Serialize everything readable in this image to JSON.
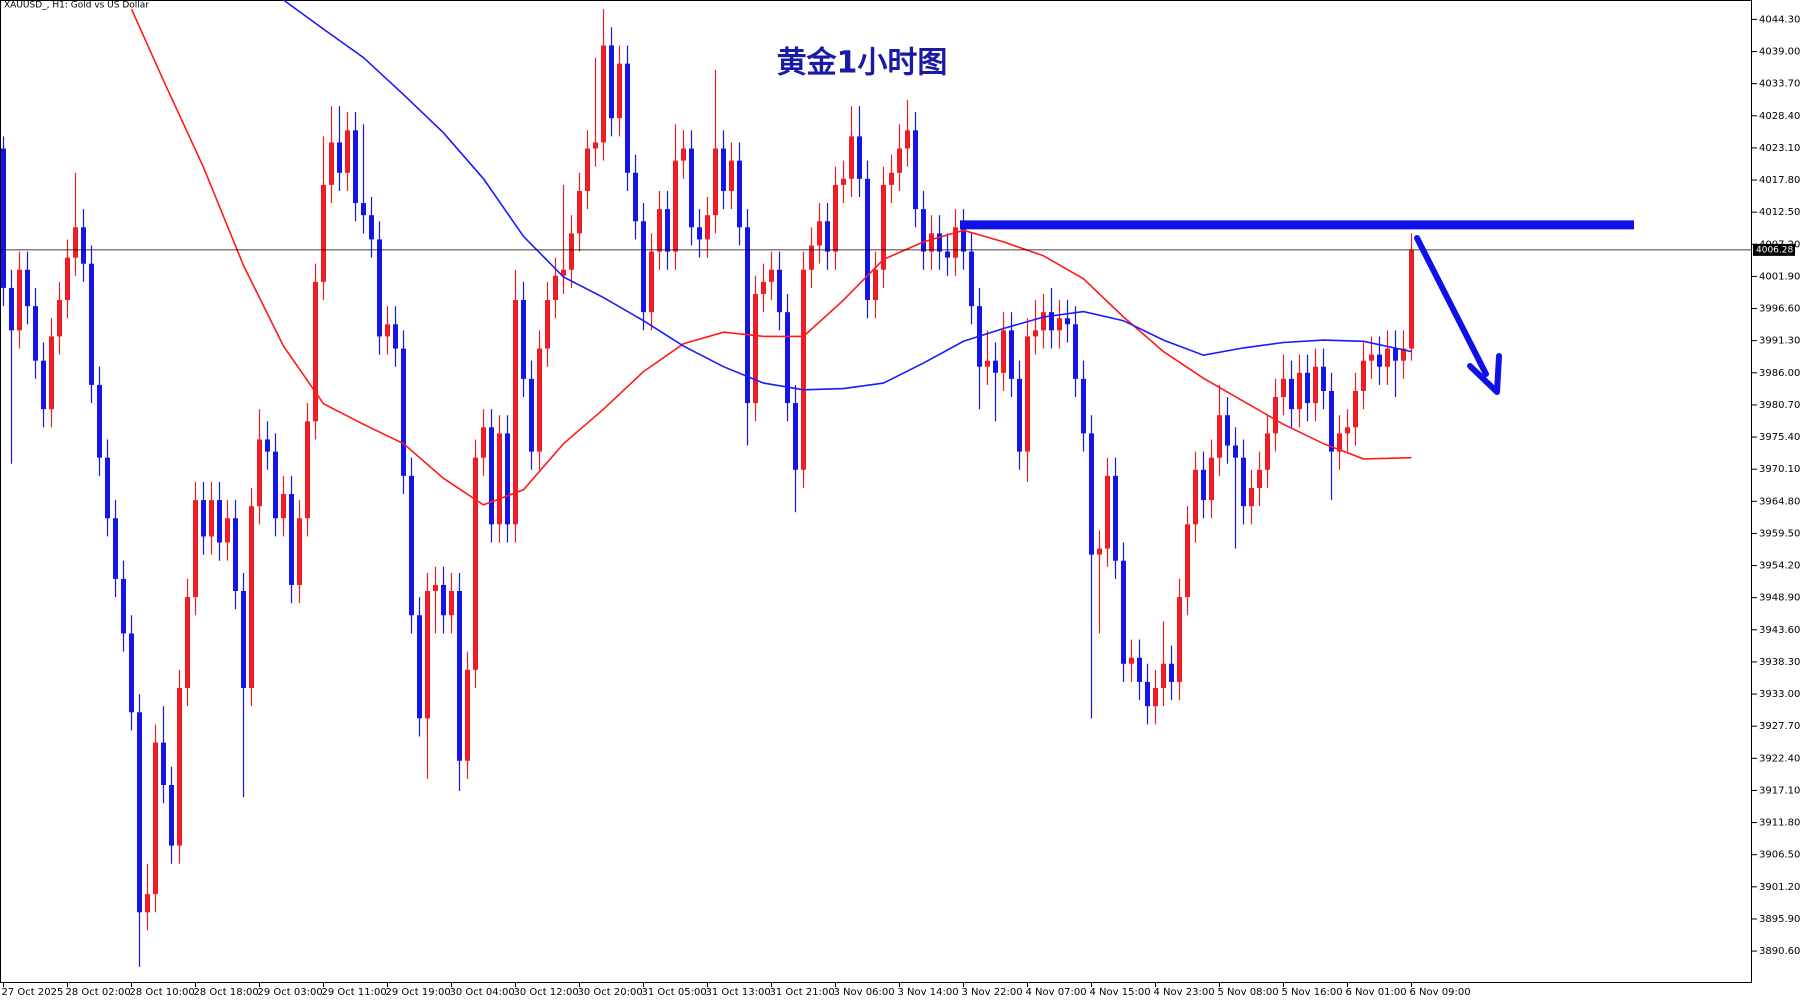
{
  "chart_data": {
    "type": "candlestick",
    "title": "黄金1小时图",
    "symbol_info": "XAUUSD_, H1:  Gold vs US Dollar",
    "up_color": "#ee1c25",
    "down_color": "#1414e6",
    "x_labels": [
      "27 Oct 2025",
      "28 Oct 02:00",
      "28 Oct 10:00",
      "28 Oct 18:00",
      "29 Oct 03:00",
      "29 Oct 11:00",
      "29 Oct 19:00",
      "30 Oct 04:00",
      "30 Oct 12:00",
      "30 Oct 20:00",
      "31 Oct 05:00",
      "31 Oct 13:00",
      "31 Oct 21:00",
      "3 Nov 06:00",
      "3 Nov 14:00",
      "3 Nov 22:00",
      "4 Nov 07:00",
      "4 Nov 15:00",
      "4 Nov 23:00",
      "5 Nov 08:00",
      "5 Nov 16:00",
      "6 Nov 01:00",
      "6 Nov 09:00"
    ],
    "ylim": [
      3885.5,
      4047.5
    ],
    "yticks": [
      {
        "value": 4044.3,
        "label": "4044.30"
      },
      {
        "value": 4039,
        "label": "4039.00"
      },
      {
        "value": 4033.7,
        "label": "4033.70"
      },
      {
        "value": 4028.4,
        "label": "4028.40"
      },
      {
        "value": 4023.1,
        "label": "4023.10"
      },
      {
        "value": 4017.8,
        "label": "4017.80"
      },
      {
        "value": 4012.5,
        "label": "4012.50"
      },
      {
        "value": 4007.2,
        "label": "4007.20"
      },
      {
        "value": 4001.9,
        "label": "4001.90"
      },
      {
        "value": 3996.6,
        "label": "3996.60"
      },
      {
        "value": 3991.3,
        "label": "3991.30"
      },
      {
        "value": 3986,
        "label": "3986.00"
      },
      {
        "value": 3980.7,
        "label": "3980.70"
      },
      {
        "value": 3975.4,
        "label": "3975.40"
      },
      {
        "value": 3970.1,
        "label": "3970.10"
      },
      {
        "value": 3964.8,
        "label": "3964.80"
      },
      {
        "value": 3959.5,
        "label": "3959.50"
      },
      {
        "value": 3954.2,
        "label": "3954.20"
      },
      {
        "value": 3948.9,
        "label": "3948.90"
      },
      {
        "value": 3943.6,
        "label": "3943.60"
      },
      {
        "value": 3938.3,
        "label": "3938.30"
      },
      {
        "value": 3933,
        "label": "3933.00"
      },
      {
        "value": 3927.7,
        "label": "3927.70"
      },
      {
        "value": 3922.4,
        "label": "3922.40"
      },
      {
        "value": 3917.1,
        "label": "3917.10"
      },
      {
        "value": 3911.8,
        "label": "3911.80"
      },
      {
        "value": 3906.5,
        "label": "3906.50"
      },
      {
        "value": 3901.2,
        "label": "3901.20"
      },
      {
        "value": 3895.9,
        "label": "3895.90"
      },
      {
        "value": 3890.6,
        "label": "3890.60"
      }
    ],
    "last_price": 4006.28,
    "level": 4010.4,
    "level_color": "#1010e8",
    "ohlc": [
      [
        4023,
        4025,
        3997,
        4000
      ],
      [
        4000,
        4003,
        3971,
        3993
      ],
      [
        3993,
        4006,
        3990,
        4003
      ],
      [
        4003,
        4006,
        3994,
        3997
      ],
      [
        3997,
        4000,
        3985,
        3988
      ],
      [
        3988,
        3991,
        3977,
        3980
      ],
      [
        3980,
        3995,
        3977,
        3992
      ],
      [
        3992,
        4001,
        3989,
        3998
      ],
      [
        3998,
        4008,
        3995,
        4005
      ],
      [
        4005,
        4019,
        4002,
        4010
      ],
      [
        4010,
        4013,
        4001,
        4004
      ],
      [
        4004,
        4007,
        3981,
        3984
      ],
      [
        3984,
        3987,
        3969,
        3972
      ],
      [
        3972,
        3975,
        3959,
        3962
      ],
      [
        3962,
        3965,
        3949,
        3952
      ],
      [
        3952,
        3955,
        3940,
        3943
      ],
      [
        3943,
        3946,
        3927,
        3930
      ],
      [
        3930,
        3933,
        3888,
        3897
      ],
      [
        3897,
        3905,
        3894,
        3900
      ],
      [
        3900,
        3928,
        3897,
        3925
      ],
      [
        3925,
        3931,
        3915,
        3918
      ],
      [
        3918,
        3921,
        3905,
        3908
      ],
      [
        3908,
        3937,
        3905,
        3934
      ],
      [
        3934,
        3952,
        3931,
        3949
      ],
      [
        3949,
        3968,
        3946,
        3965
      ],
      [
        3965,
        3968,
        3956,
        3959
      ],
      [
        3959,
        3968,
        3956,
        3965
      ],
      [
        3965,
        3968,
        3955,
        3958
      ],
      [
        3958,
        3965,
        3955,
        3962
      ],
      [
        3962,
        3965,
        3947,
        3950
      ],
      [
        3950,
        3953,
        3916,
        3934
      ],
      [
        3934,
        3967,
        3931,
        3964
      ],
      [
        3964,
        3980,
        3961,
        3975
      ],
      [
        3975,
        3978,
        3970,
        3973
      ],
      [
        3973,
        3976,
        3959,
        3962
      ],
      [
        3962,
        3969,
        3959,
        3966
      ],
      [
        3966,
        3969,
        3948,
        3951
      ],
      [
        3951,
        3965,
        3948,
        3962
      ],
      [
        3962,
        3981,
        3959,
        3978
      ],
      [
        3978,
        4004,
        3975,
        4001
      ],
      [
        4001,
        4025,
        3998,
        4017
      ],
      [
        4017,
        4030,
        4014,
        4024
      ],
      [
        4024,
        4030,
        4016,
        4019
      ],
      [
        4019,
        4029,
        4016,
        4026
      ],
      [
        4026,
        4029,
        4011,
        4014
      ],
      [
        4014,
        4027,
        4009,
        4012
      ],
      [
        4012,
        4015,
        4005,
        4008
      ],
      [
        4008,
        4011,
        3989,
        3992
      ],
      [
        3992,
        3997,
        3989,
        3994
      ],
      [
        3994,
        3997,
        3987,
        3990
      ],
      [
        3990,
        3993,
        3966,
        3969
      ],
      [
        3969,
        3972,
        3943,
        3946
      ],
      [
        3946,
        3949,
        3926,
        3929
      ],
      [
        3929,
        3953,
        3919,
        3950
      ],
      [
        3950,
        3954,
        3943,
        3951
      ],
      [
        3951,
        3954,
        3943,
        3946
      ],
      [
        3946,
        3953,
        3943,
        3950
      ],
      [
        3950,
        3953,
        3917,
        3922
      ],
      [
        3922,
        3940,
        3919,
        3937
      ],
      [
        3937,
        3975,
        3934,
        3972
      ],
      [
        3972,
        3980,
        3969,
        3977
      ],
      [
        3977,
        3980,
        3958,
        3961
      ],
      [
        3961,
        3979,
        3958,
        3976
      ],
      [
        3976,
        3979,
        3958,
        3961
      ],
      [
        3961,
        4003,
        3958,
        3998
      ],
      [
        3998,
        4001,
        3982,
        3985
      ],
      [
        3985,
        3988,
        3970,
        3973
      ],
      [
        3973,
        3993,
        3970,
        3990
      ],
      [
        3990,
        4001,
        3987,
        3998
      ],
      [
        3998,
        4005,
        3995,
        4002
      ],
      [
        4002,
        4017,
        3999,
        4003
      ],
      [
        4003,
        4012,
        4000,
        4009
      ],
      [
        4009,
        4019,
        4006,
        4016
      ],
      [
        4016,
        4026,
        4013,
        4023
      ],
      [
        4023,
        4038,
        4020,
        4024
      ],
      [
        4024,
        4046,
        4021,
        4040
      ],
      [
        4040,
        4043,
        4025,
        4028
      ],
      [
        4028,
        4040,
        4025,
        4037
      ],
      [
        4037,
        4040,
        4016,
        4019
      ],
      [
        4019,
        4022,
        4008,
        4011
      ],
      [
        4011,
        4014,
        3993,
        3996
      ],
      [
        3996,
        4009,
        3993,
        4006
      ],
      [
        4006,
        4016,
        4003,
        4013
      ],
      [
        4013,
        4016,
        4003,
        4006
      ],
      [
        4006,
        4027,
        4003,
        4021
      ],
      [
        4021,
        4026,
        4018,
        4023
      ],
      [
        4023,
        4026,
        4007,
        4010
      ],
      [
        4010,
        4013,
        4005,
        4008
      ],
      [
        4008,
        4015,
        4005,
        4012
      ],
      [
        4012,
        4036,
        4009,
        4023
      ],
      [
        4023,
        4026,
        4013,
        4016
      ],
      [
        4016,
        4024,
        4013,
        4021
      ],
      [
        4021,
        4024,
        4007,
        4010
      ],
      [
        4010,
        4013,
        3974,
        3981
      ],
      [
        3981,
        4002,
        3978,
        3999
      ],
      [
        3999,
        4004,
        3996,
        4001
      ],
      [
        4001,
        4006,
        3998,
        4003
      ],
      [
        4003,
        4006,
        3993,
        3996
      ],
      [
        3996,
        3999,
        3978,
        3981
      ],
      [
        3981,
        3984,
        3963,
        3970
      ],
      [
        3970,
        4006,
        3967,
        4003
      ],
      [
        4003,
        4010,
        4000,
        4007
      ],
      [
        4007,
        4014,
        4004,
        4011
      ],
      [
        4011,
        4014,
        4003,
        4006
      ],
      [
        4006,
        4020,
        4003,
        4017
      ],
      [
        4017,
        4021,
        4014,
        4018
      ],
      [
        4018,
        4030,
        4015,
        4025
      ],
      [
        4025,
        4030,
        4015,
        4018
      ],
      [
        4018,
        4021,
        3995,
        3998
      ],
      [
        3998,
        4006,
        3995,
        4003
      ],
      [
        4003,
        4020,
        4000,
        4017
      ],
      [
        4017,
        4022,
        4014,
        4019
      ],
      [
        4019,
        4027,
        4016,
        4023
      ],
      [
        4023,
        4031,
        4020,
        4026
      ],
      [
        4026,
        4029,
        4010,
        4013
      ],
      [
        4013,
        4016,
        4003,
        4006
      ],
      [
        4006,
        4012,
        4003,
        4009
      ],
      [
        4009,
        4012,
        4003,
        4006
      ],
      [
        4006,
        4009,
        4002,
        4005
      ],
      [
        4005,
        4013,
        4002,
        4010
      ],
      [
        4010,
        4013,
        4003,
        4006
      ],
      [
        4006,
        4009,
        3994,
        3997
      ],
      [
        3997,
        4000,
        3980,
        3987
      ],
      [
        3987,
        3993,
        3984,
        3988
      ],
      [
        3988,
        3991,
        3978,
        3986
      ],
      [
        3986,
        3996,
        3983,
        3993
      ],
      [
        3993,
        3996,
        3982,
        3985
      ],
      [
        3985,
        3988,
        3970,
        3973
      ],
      [
        3973,
        3995,
        3968,
        3992
      ],
      [
        3992,
        3998,
        3989,
        3993
      ],
      [
        3993,
        3999,
        3990,
        3996
      ],
      [
        3996,
        4000,
        3990,
        3993
      ],
      [
        3993,
        3998,
        3990,
        3995
      ],
      [
        3995,
        3998,
        3991,
        3994
      ],
      [
        3994,
        3997,
        3982,
        3985
      ],
      [
        3985,
        3988,
        3973,
        3976
      ],
      [
        3976,
        3979,
        3929,
        3956
      ],
      [
        3956,
        3960,
        3943,
        3957
      ],
      [
        3957,
        3972,
        3954,
        3969
      ],
      [
        3969,
        3972,
        3952,
        3955
      ],
      [
        3955,
        3958,
        3935,
        3938
      ],
      [
        3938,
        3942,
        3935,
        3939
      ],
      [
        3939,
        3942,
        3932,
        3935
      ],
      [
        3935,
        3938,
        3928,
        3931
      ],
      [
        3931,
        3937,
        3928,
        3934
      ],
      [
        3934,
        3945,
        3931,
        3938
      ],
      [
        3938,
        3941,
        3932,
        3935
      ],
      [
        3935,
        3952,
        3932,
        3949
      ],
      [
        3949,
        3964,
        3946,
        3961
      ],
      [
        3961,
        3973,
        3958,
        3970
      ],
      [
        3970,
        3973,
        3962,
        3965
      ],
      [
        3965,
        3975,
        3962,
        3972
      ],
      [
        3972,
        3984,
        3969,
        3979
      ],
      [
        3979,
        3982,
        3971,
        3974
      ],
      [
        3974,
        3977,
        3957,
        3972
      ],
      [
        3972,
        3975,
        3961,
        3964
      ],
      [
        3964,
        3970,
        3961,
        3967
      ],
      [
        3967,
        3973,
        3964,
        3970
      ],
      [
        3970,
        3979,
        3967,
        3976
      ],
      [
        3976,
        3985,
        3973,
        3982
      ],
      [
        3982,
        3989,
        3979,
        3985
      ],
      [
        3985,
        3988,
        3977,
        3980
      ],
      [
        3980,
        3989,
        3977,
        3986
      ],
      [
        3986,
        3989,
        3978,
        3981
      ],
      [
        3981,
        3990,
        3978,
        3987
      ],
      [
        3987,
        3990,
        3980,
        3983
      ],
      [
        3983,
        3986,
        3965,
        3973
      ],
      [
        3973,
        3979,
        3970,
        3976
      ],
      [
        3976,
        3980,
        3973,
        3977
      ],
      [
        3977,
        3986,
        3974,
        3983
      ],
      [
        3983,
        3991,
        3980,
        3988
      ],
      [
        3988,
        3992,
        3985,
        3989
      ],
      [
        3989,
        3992,
        3984,
        3987
      ],
      [
        3987,
        3993,
        3984,
        3990
      ],
      [
        3990,
        3993,
        3982,
        3988
      ],
      [
        3988,
        3993,
        3985,
        3990
      ],
      [
        3990,
        4009,
        3988,
        4006.28
      ]
    ],
    "series": [
      {
        "color": "#ff1a1a",
        "x": [
          16,
          20,
          25,
          30,
          35,
          40,
          45,
          50,
          55,
          60,
          65,
          70,
          75,
          80,
          85,
          90,
          95,
          100,
          105,
          110,
          115,
          120,
          125,
          130,
          135,
          140,
          145,
          150,
          155,
          160,
          165,
          170,
          176
        ],
        "values": [
          4046,
          4034.2,
          4019.9,
          4003.7,
          3990.4,
          3980.9,
          3977.5,
          3974.3,
          3968.6,
          3964.2,
          3966.7,
          3974.3,
          3980,
          3986.2,
          3990.8,
          3992.7,
          3992,
          3992,
          3998,
          4004.7,
          4007.6,
          4009.5,
          4007.6,
          4005.3,
          4001.5,
          3995.2,
          3989.5,
          3985.1,
          3981.3,
          3977.5,
          3974.3,
          3971.8,
          3972
        ]
      },
      {
        "color": "#1a1aff",
        "x": [
          35,
          40,
          45,
          50,
          55,
          60,
          65,
          70,
          75,
          80,
          85,
          90,
          95,
          100,
          105,
          110,
          115,
          120,
          125,
          130,
          135,
          140,
          145,
          150,
          155,
          160,
          165,
          170,
          176
        ],
        "values": [
          4047.5,
          4042.7,
          4038,
          4031.9,
          4025.6,
          4018,
          4008.5,
          4001.8,
          3998.4,
          3994.6,
          3990.4,
          3987,
          3984.3,
          3983.2,
          3983.4,
          3984.3,
          3987.6,
          3991.2,
          3993.3,
          3995.2,
          3996.1,
          3994.6,
          3991.4,
          3988.9,
          3990.1,
          3991,
          3991.4,
          3991.2,
          3989.5
        ]
      }
    ]
  }
}
